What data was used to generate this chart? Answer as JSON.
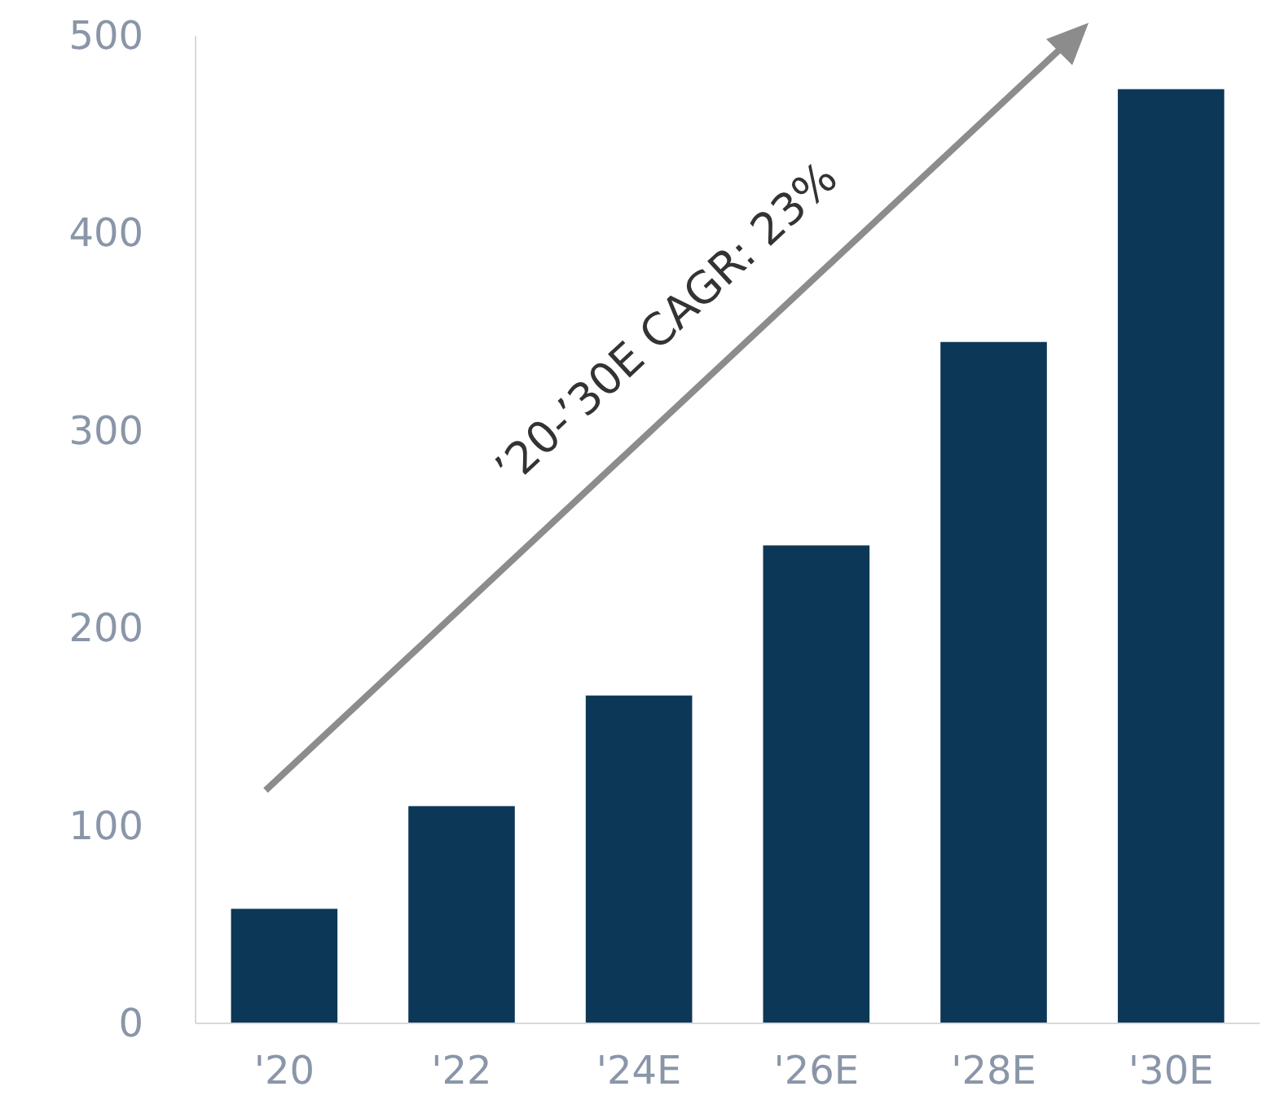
{
  "chart_data": {
    "type": "bar",
    "categories": [
      "'20",
      "'22",
      "'24E",
      "'26E",
      "'28E",
      "'30E"
    ],
    "values": [
      58,
      110,
      166,
      242,
      345,
      473
    ],
    "color": "#0d3756",
    "ylim": [
      0,
      500
    ],
    "yticks": [
      0,
      100,
      200,
      300,
      400,
      500
    ],
    "grid": false,
    "annotations": [
      "’20-’30E CAGR: 23%"
    ]
  }
}
